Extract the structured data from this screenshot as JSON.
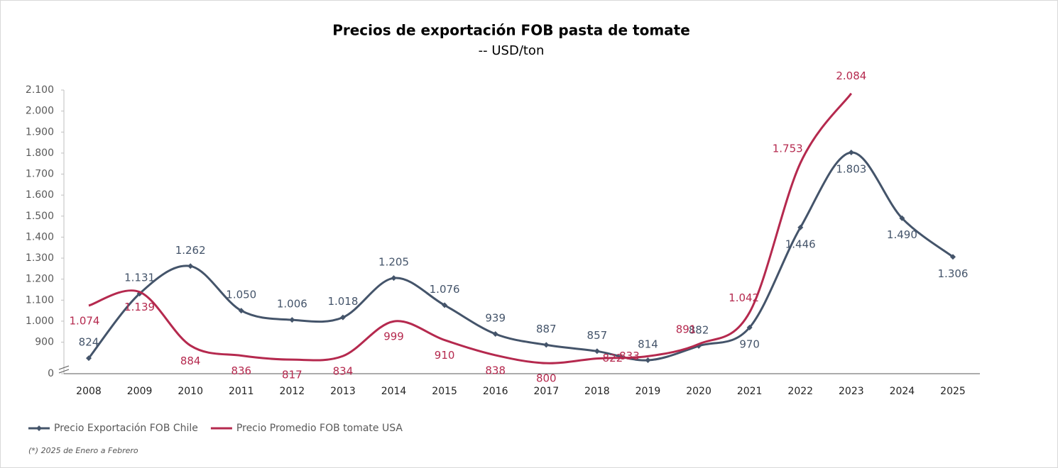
{
  "chart_data": {
    "type": "line",
    "title": "Precios de exportación FOB pasta de tomate",
    "subtitle": "-- USD/ton",
    "note": "(*) 2025 de Enero a Febrero",
    "categories": [
      "2008",
      "2009",
      "2010",
      "2011",
      "2012",
      "2013",
      "2014",
      "2015",
      "2016",
      "2017",
      "2018",
      "2019",
      "2020",
      "2021",
      "2022",
      "2023",
      "2024",
      "2025"
    ],
    "series": [
      {
        "name": "Precio Exportación FOB Chile",
        "color": "#44546a",
        "values": [
          824,
          1131,
          1262,
          1050,
          1006,
          1018,
          1205,
          1076,
          939,
          887,
          857,
          814,
          882,
          970,
          1446,
          1803,
          1490,
          1306
        ],
        "value_labels": [
          "824",
          "1.131",
          "1.262",
          "1.050",
          "1.006",
          "1.018",
          "1.205",
          "1.076",
          "939",
          "887",
          "857",
          "814",
          "882",
          "970",
          "1.446",
          "1.803",
          "1.490",
          "1.306"
        ]
      },
      {
        "name": "Precio Promedio FOB tomate USA",
        "color": "#b5294e",
        "values": [
          1074,
          1139,
          884,
          836,
          817,
          834,
          999,
          910,
          838,
          800,
          822,
          833,
          891,
          1042,
          1753,
          2084,
          null,
          null
        ],
        "value_labels": [
          "1.074",
          "1.139",
          "884",
          "836",
          "817",
          "834",
          "999",
          "910",
          "838",
          "800",
          "822",
          "833",
          "891",
          "1.042",
          "1.753",
          "2.084",
          null,
          null
        ]
      }
    ],
    "ylim": [
      0,
      2100
    ],
    "axis_break": [
      0,
      750
    ],
    "yticks": [
      0,
      900,
      {
        "value": 1000,
        "label": "1.000"
      },
      {
        "value": 1100,
        "label": "1.100"
      },
      {
        "value": 1200,
        "label": "1.200"
      },
      {
        "value": 1300,
        "label": "1.300"
      },
      {
        "value": 1400,
        "label": "1.400"
      },
      {
        "value": 1500,
        "label": "1.500"
      },
      {
        "value": 1600,
        "label": "1.600"
      },
      {
        "value": 1700,
        "label": "1.700"
      },
      {
        "value": 1800,
        "label": "1.800"
      },
      {
        "value": 1900,
        "label": "1.900"
      },
      {
        "value": 2000,
        "label": "2.000"
      },
      {
        "value": 2100,
        "label": "2.100"
      }
    ],
    "legend": "bottom-left",
    "smooth": true
  }
}
